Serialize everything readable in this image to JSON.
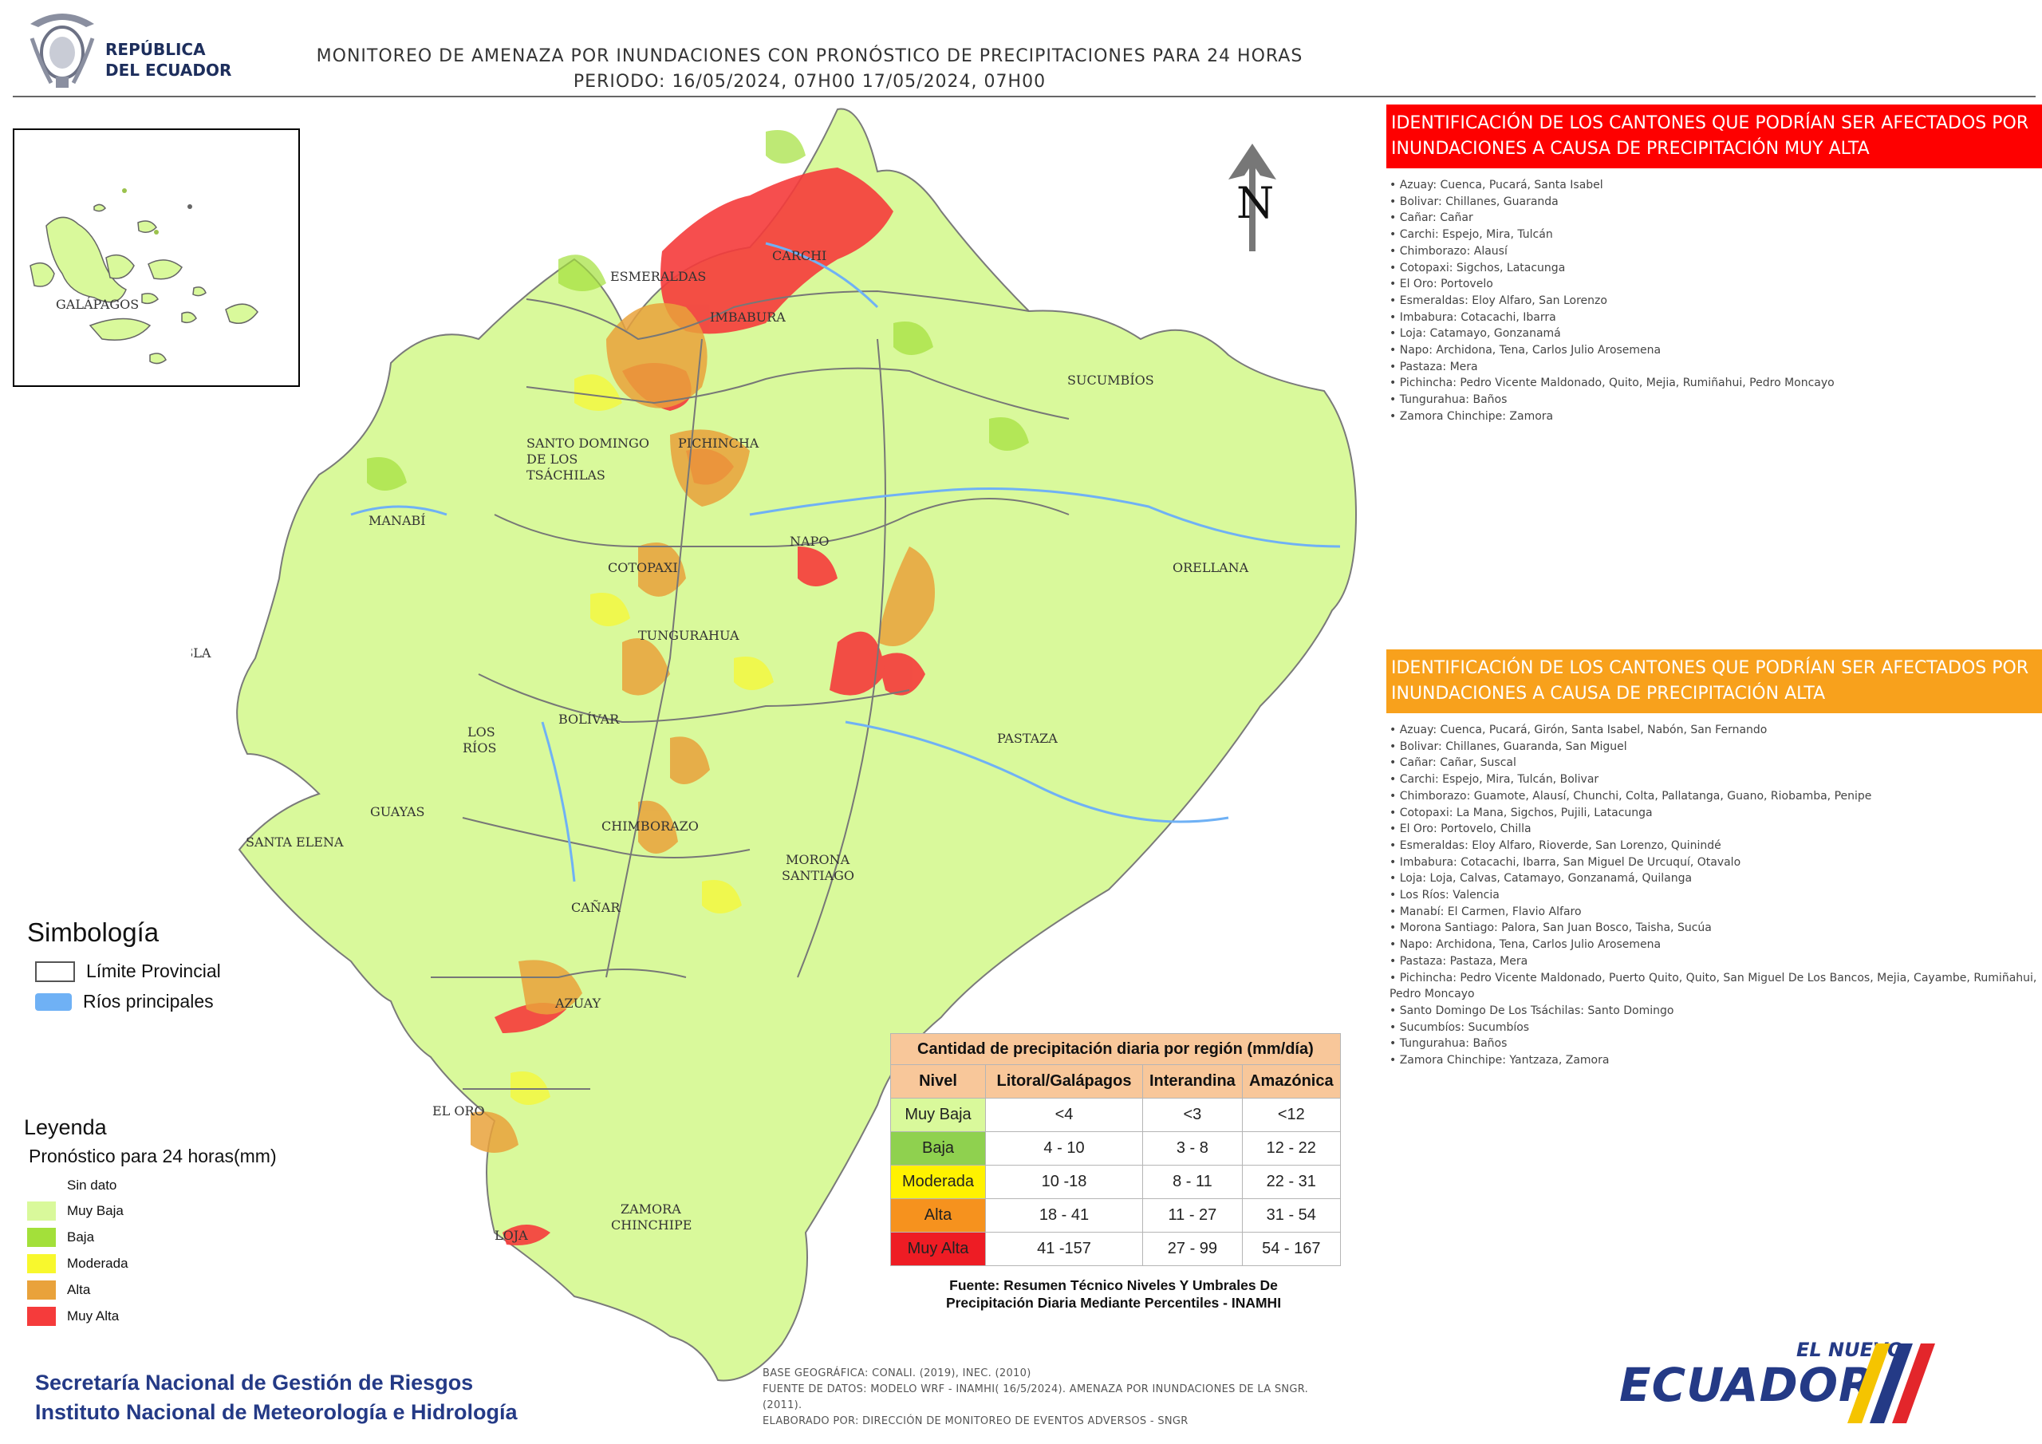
{
  "header": {
    "logo_line1": "REPÚBLICA",
    "logo_line2": "DEL ECUADOR",
    "title_line1": "MONITOREO DE AMENAZA POR INUNDACIONES  CON PRONÓSTICO DE  PRECIPITACIONES PARA 24 HORAS",
    "title_line2": "PERIODO: 16/05/2024, 07H00 17/05/2024, 07H00"
  },
  "map": {
    "north_label": "N",
    "inset_label": "GALÁPAGOS",
    "province_labels": [
      "ESMERALDAS",
      "CARCHI",
      "IMBABURA",
      "SUCUMBÍOS",
      "SANTO DOMINGO",
      "DE LOS",
      "TSÁCHILAS",
      "PICHINCHA",
      "MANABÍ",
      "NAPO",
      "COTOPAXI",
      "ORELLANA",
      "ISLA",
      "TUNGURAHUA",
      "BOLÍVAR",
      "LOS",
      "RÍOS",
      "PASTAZA",
      "GUAYAS",
      "CHIMBORAZO",
      "SANTA ELENA",
      "MORONA",
      "SANTIAGO",
      "CAÑAR",
      "AZUAY",
      "EL ORO",
      "ZAMORA",
      "CHINCHIPE",
      "LOJA"
    ]
  },
  "very_high": {
    "title": "IDENTIFICACIÓN DE LOS CANTONES QUE PODRÍAN SER AFECTADOS POR INUNDACIONES  A CAUSA DE PRECIPITACIÓN MUY ALTA",
    "color": "#fe0000",
    "items": [
      "Azuay: Cuenca, Pucará, Santa Isabel",
      "Bolivar: Chillanes, Guaranda",
      "Cañar: Cañar",
      "Carchi: Espejo, Mira, Tulcán",
      "Chimborazo: Alausí",
      "Cotopaxi: Sigchos, Latacunga",
      "El Oro: Portovelo",
      "Esmeraldas: Eloy Alfaro, San Lorenzo",
      "Imbabura: Cotacachi, Ibarra",
      "Loja: Catamayo, Gonzanamá",
      "Napo: Archidona, Tena, Carlos Julio Arosemena",
      "Pastaza: Mera",
      "Pichincha: Pedro Vicente Maldonado, Quito, Mejia, Rumiñahui, Pedro Moncayo",
      "Tungurahua: Baños",
      "Zamora Chinchipe: Zamora"
    ]
  },
  "high": {
    "title": "IDENTIFICACIÓN DE LOS CANTONES QUE  PODRÍAN SER AFECTADOS POR INUNDACIONES  A CAUSA DE PRECIPITACIÓN  ALTA",
    "color": "#f8a11c",
    "items": [
      "Azuay: Cuenca, Pucará, Girón, Santa Isabel, Nabón, San Fernando",
      "Bolivar: Chillanes, Guaranda, San Miguel",
      "Cañar: Cañar, Suscal",
      "Carchi: Espejo, Mira, Tulcán, Bolivar",
      "Chimborazo: Guamote, Alausí, Chunchi, Colta, Pallatanga, Guano, Riobamba, Penipe",
      "Cotopaxi: La Mana, Sigchos, Pujili, Latacunga",
      "El Oro: Portovelo, Chilla",
      "Esmeraldas: Eloy Alfaro, Rioverde, San Lorenzo, Quinindé",
      "Imbabura: Cotacachi, Ibarra, San Miguel De Urcuquí, Otavalo",
      "Loja: Loja, Calvas, Catamayo, Gonzanamá, Quilanga",
      "Los Ríos: Valencia",
      "Manabí: El Carmen, Flavio Alfaro",
      "Morona Santiago: Palora, San Juan Bosco, Taisha, Sucúa",
      "Napo: Archidona, Tena, Carlos Julio Arosemena",
      "Pastaza: Pastaza, Mera",
      "Pichincha: Pedro Vicente Maldonado, Puerto Quito, Quito, San Miguel De Los Bancos, Mejia, Cayambe, Rumiñahui, Pedro Moncayo",
      "Santo Domingo De Los Tsáchilas: Santo Domingo",
      "Sucumbíos: Sucumbíos",
      "Tungurahua: Baños",
      "Zamora Chinchipe: Yantzaza, Zamora"
    ]
  },
  "simbologia": {
    "title": "Simbología",
    "limite": "Límite Provincial",
    "rios": "Ríos principales",
    "river_color": "#6fb1f5"
  },
  "leyenda": {
    "title": "Leyenda",
    "subtitle": "Pronóstico para 24 horas(mm)",
    "items": [
      {
        "label": "Sin dato",
        "color": "#ffffff"
      },
      {
        "label": "Muy Baja",
        "color": "#d9f99b"
      },
      {
        "label": "Baja",
        "color": "#a3e03a"
      },
      {
        "label": "Moderada",
        "color": "#f8f82d"
      },
      {
        "label": "Alta",
        "color": "#e9a23b"
      },
      {
        "label": "Muy Alta",
        "color": "#f53b3b"
      }
    ]
  },
  "precip_table": {
    "caption": "Cantidad de precipitación diaria por región (mm/día)",
    "headers": [
      "Nivel",
      "Litoral/Galápagos",
      "Interandina",
      "Amazónica"
    ],
    "rows": [
      {
        "level": "Muy Baja",
        "color": "#d9f99b",
        "values": [
          "<4",
          "<3",
          "<12"
        ]
      },
      {
        "level": "Baja",
        "color": "#8fd14f",
        "values": [
          "4 - 10",
          "3 - 8",
          "12 - 22"
        ]
      },
      {
        "level": "Moderada",
        "color": "#fff200",
        "values": [
          "10 -18",
          "8 - 11",
          "22 - 31"
        ]
      },
      {
        "level": "Alta",
        "color": "#f6921e",
        "values": [
          "18 - 41",
          "11 - 27",
          "31 - 54"
        ]
      },
      {
        "level": "Muy Alta",
        "color": "#ee1c24",
        "values": [
          "41 -157",
          "27 - 99",
          "54 - 167"
        ]
      }
    ],
    "source_line1": "Fuente: Resumen Técnico Niveles Y Umbrales De",
    "source_line2": "Precipitación Diaria Mediante Percentiles - INAMHI"
  },
  "footer": {
    "inst1": "Secretaría Nacional de Gestión de Riesgos",
    "inst2": "Instituto Nacional de Meteorología e Hidrología",
    "note1": "BASE GEOGRÁFICA: CONALI. (2019), INEC. (2010)",
    "note2": "FUENTE DE DATOS: MODELO WRF - INAMHI( 16/5/2024).  AMENAZA POR INUNDACIONES DE LA SNGR. (2011).",
    "note3": "ELABORADO POR: DIRECCIÓN DE MONITOREO DE EVENTOS ADVERSOS - SNGR",
    "brand_small": "EL NUEVO",
    "brand_big": "ECUADOR"
  }
}
